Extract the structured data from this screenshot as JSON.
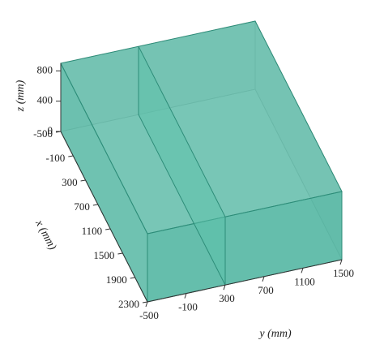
{
  "chart_data": {
    "type": "box3d",
    "xlabel": "x (mm)",
    "ylabel": "y (mm)",
    "zlabel": "z (mm)",
    "xlim": [
      -500,
      2300
    ],
    "ylim": [
      -500,
      1500
    ],
    "zlim": [
      0,
      900
    ],
    "xticks": [
      -500,
      -100,
      300,
      700,
      1100,
      1500,
      1900,
      2300
    ],
    "yticks": [
      -500,
      -100,
      300,
      700,
      1100,
      1500
    ],
    "zticks": [
      0,
      400,
      800
    ],
    "color": "#3fae97"
  }
}
